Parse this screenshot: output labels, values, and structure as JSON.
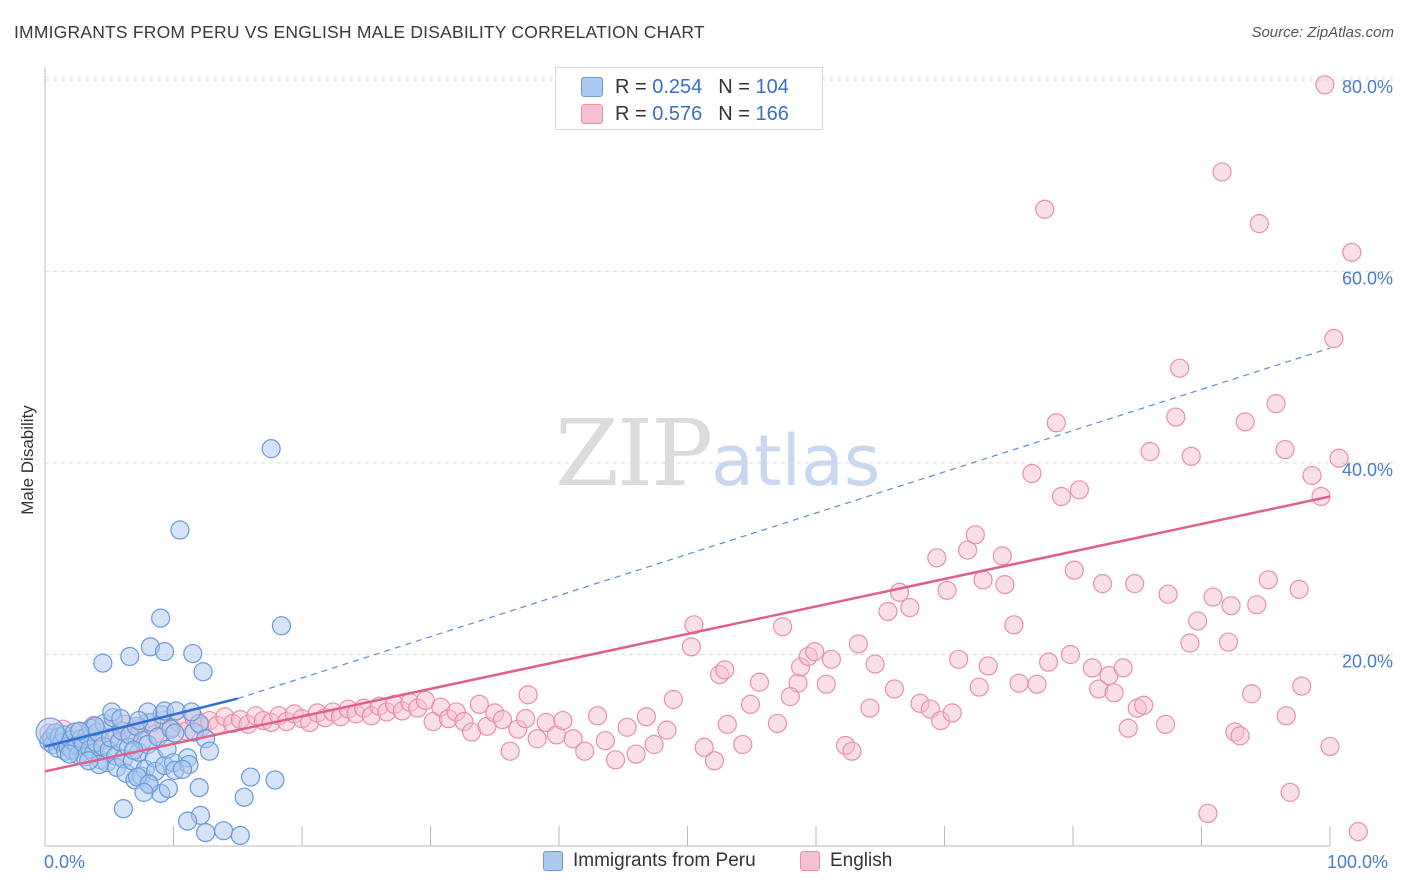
{
  "title": "IMMIGRANTS FROM PERU VS ENGLISH MALE DISABILITY CORRELATION CHART",
  "source": "Source: ZipAtlas.com",
  "watermark": {
    "zip": "ZIP",
    "atlas": "atlas"
  },
  "colors": {
    "blue_fill": "#aac8f0",
    "blue_stroke": "#6a9ad8",
    "blue_line": "#2f6fd1",
    "pink_fill": "#f6c0d0",
    "pink_stroke": "#e890ab",
    "pink_line": "#e0608a",
    "grid": "#dddddd",
    "axis_text": "#4a7bd0"
  },
  "legend_top": [
    {
      "r_label": "R =",
      "r_value": "0.254",
      "n_label": "N =",
      "n_value": "104"
    },
    {
      "r_label": "R =",
      "r_value": "0.576",
      "n_label": "N =",
      "n_value": "166"
    }
  ],
  "legend_bottom": [
    "Immigrants from Peru",
    "English"
  ],
  "chart_data": {
    "type": "scatter",
    "title": "IMMIGRANTS FROM PERU VS ENGLISH MALE DISABILITY CORRELATION CHART",
    "xlabel": "",
    "ylabel": "Male Disability",
    "xlim": [
      0,
      100
    ],
    "ylim": [
      0,
      80
    ],
    "x_tick_labels": {
      "left": "0.0%",
      "right": "100.0%"
    },
    "y_ticks": [
      {
        "value": 20,
        "label": "20.0%"
      },
      {
        "value": 40,
        "label": "40.0%"
      },
      {
        "value": 60,
        "label": "60.0%"
      },
      {
        "value": 80,
        "label": "80.0%"
      }
    ],
    "series": [
      {
        "name": "Immigrants from Peru",
        "color": "blue",
        "R": 0.254,
        "N": 104,
        "trend_solid": [
          [
            0,
            10.4
          ],
          [
            15,
            15.4
          ]
        ],
        "trend_dashed": [
          [
            15,
            15.4
          ],
          [
            100,
            52.0
          ]
        ],
        "points": [
          [
            0.3,
            10.9
          ],
          [
            0.5,
            11.3
          ],
          [
            0.6,
            10.6
          ],
          [
            0.8,
            11.8
          ],
          [
            1.0,
            10.2
          ],
          [
            1.1,
            11.4
          ],
          [
            1.3,
            10.8
          ],
          [
            1.5,
            11.6
          ],
          [
            1.6,
            9.9
          ],
          [
            1.8,
            10.4
          ],
          [
            2.0,
            11.1
          ],
          [
            2.1,
            10.0
          ],
          [
            2.3,
            11.9
          ],
          [
            2.5,
            10.5
          ],
          [
            2.6,
            9.5
          ],
          [
            2.8,
            11.2
          ],
          [
            3.0,
            10.7
          ],
          [
            3.1,
            9.3
          ],
          [
            3.3,
            11.5
          ],
          [
            3.5,
            10.1
          ],
          [
            3.6,
            12.3
          ],
          [
            3.8,
            9.7
          ],
          [
            4.0,
            10.8
          ],
          [
            4.1,
            11.9
          ],
          [
            4.3,
            9.0
          ],
          [
            4.5,
            10.4
          ],
          [
            4.6,
            12.8
          ],
          [
            4.8,
            8.7
          ],
          [
            5.0,
            10.0
          ],
          [
            5.1,
            11.3
          ],
          [
            5.3,
            13.4
          ],
          [
            5.5,
            9.4
          ],
          [
            5.6,
            8.2
          ],
          [
            5.8,
            10.9
          ],
          [
            6.0,
            12.0
          ],
          [
            6.1,
            9.1
          ],
          [
            6.3,
            7.6
          ],
          [
            6.5,
            10.3
          ],
          [
            6.6,
            11.6
          ],
          [
            6.8,
            8.9
          ],
          [
            7.0,
            6.9
          ],
          [
            7.1,
            12.5
          ],
          [
            7.3,
            9.8
          ],
          [
            7.5,
            7.3
          ],
          [
            7.6,
            11.0
          ],
          [
            7.8,
            8.0
          ],
          [
            8.0,
            10.6
          ],
          [
            8.1,
            6.4
          ],
          [
            8.3,
            12.9
          ],
          [
            8.5,
            9.2
          ],
          [
            8.6,
            7.8
          ],
          [
            8.8,
            11.4
          ],
          [
            9.0,
            5.5
          ],
          [
            9.1,
            13.7
          ],
          [
            9.3,
            8.4
          ],
          [
            9.5,
            10.1
          ],
          [
            9.6,
            6.0
          ],
          [
            9.8,
            12.2
          ],
          [
            10.0,
            8.7
          ],
          [
            10.1,
            11.8
          ],
          [
            6.1,
            3.9
          ],
          [
            7.2,
            7.2
          ],
          [
            9.3,
            14.1
          ],
          [
            10.2,
            14.1
          ],
          [
            10.1,
            7.9
          ],
          [
            11.1,
            9.2
          ],
          [
            11.2,
            8.5
          ],
          [
            11.6,
            11.9
          ],
          [
            12.0,
            12.8
          ],
          [
            12.0,
            6.1
          ],
          [
            12.1,
            3.2
          ],
          [
            12.3,
            18.2
          ],
          [
            12.5,
            11.2
          ],
          [
            11.4,
            14.0
          ],
          [
            8.0,
            14.0
          ],
          [
            8.2,
            20.8
          ],
          [
            9.3,
            20.3
          ],
          [
            4.5,
            19.1
          ],
          [
            6.6,
            19.8
          ],
          [
            11.5,
            20.1
          ],
          [
            8.1,
            6.5
          ],
          [
            7.3,
            13.1
          ],
          [
            5.2,
            14.0
          ],
          [
            3.9,
            12.5
          ],
          [
            10.5,
            33.0
          ],
          [
            11.1,
            2.6
          ],
          [
            12.5,
            1.4
          ],
          [
            13.9,
            1.6
          ],
          [
            15.5,
            5.1
          ],
          [
            16.0,
            7.2
          ],
          [
            17.6,
            41.5
          ],
          [
            17.9,
            6.9
          ],
          [
            18.4,
            23.0
          ],
          [
            9.0,
            23.8
          ],
          [
            15.2,
            1.1
          ],
          [
            1.9,
            9.6
          ],
          [
            2.7,
            12.0
          ],
          [
            4.2,
            8.5
          ],
          [
            5.9,
            13.3
          ],
          [
            6.9,
            10.0
          ],
          [
            7.7,
            5.6
          ],
          [
            12.8,
            9.9
          ],
          [
            10.7,
            8.0
          ],
          [
            3.4,
            8.9
          ]
        ]
      },
      {
        "name": "English",
        "color": "pink",
        "R": 0.576,
        "N": 166,
        "trend": [
          [
            0,
            7.8
          ],
          [
            100,
            36.5
          ]
        ],
        "points": [
          [
            0.3,
            11.8
          ],
          [
            0.8,
            11.0
          ],
          [
            1.4,
            12.2
          ],
          [
            2.0,
            10.6
          ],
          [
            2.6,
            11.9
          ],
          [
            3.2,
            11.4
          ],
          [
            3.8,
            12.6
          ],
          [
            4.4,
            11.0
          ],
          [
            5.0,
            12.1
          ],
          [
            5.6,
            11.5
          ],
          [
            6.2,
            12.7
          ],
          [
            6.8,
            11.8
          ],
          [
            7.4,
            12.3
          ],
          [
            8.0,
            12.9
          ],
          [
            8.6,
            11.7
          ],
          [
            9.2,
            13.1
          ],
          [
            9.8,
            12.4
          ],
          [
            10.4,
            12.9
          ],
          [
            11.0,
            12.0
          ],
          [
            11.6,
            13.4
          ],
          [
            12.2,
            12.5
          ],
          [
            12.8,
            13.1
          ],
          [
            13.4,
            12.6
          ],
          [
            14.0,
            13.5
          ],
          [
            14.6,
            12.8
          ],
          [
            15.2,
            13.2
          ],
          [
            15.8,
            12.7
          ],
          [
            16.4,
            13.6
          ],
          [
            17.0,
            13.1
          ],
          [
            17.6,
            12.9
          ],
          [
            18.2,
            13.6
          ],
          [
            18.8,
            13.0
          ],
          [
            19.4,
            13.8
          ],
          [
            20.0,
            13.3
          ],
          [
            20.6,
            12.9
          ],
          [
            21.2,
            13.9
          ],
          [
            21.8,
            13.4
          ],
          [
            22.4,
            14.0
          ],
          [
            23.0,
            13.5
          ],
          [
            23.6,
            14.3
          ],
          [
            24.2,
            13.8
          ],
          [
            24.8,
            14.4
          ],
          [
            25.4,
            13.6
          ],
          [
            26.0,
            14.6
          ],
          [
            26.6,
            14.0
          ],
          [
            27.2,
            14.8
          ],
          [
            27.8,
            14.1
          ],
          [
            28.4,
            15.0
          ],
          [
            29.0,
            14.4
          ],
          [
            29.6,
            15.2
          ],
          [
            30.2,
            13.0
          ],
          [
            30.8,
            14.5
          ],
          [
            31.4,
            13.3
          ],
          [
            32.0,
            14.0
          ],
          [
            32.6,
            13.0
          ],
          [
            33.2,
            11.9
          ],
          [
            33.8,
            14.8
          ],
          [
            34.4,
            12.5
          ],
          [
            35.0,
            13.9
          ],
          [
            35.6,
            13.2
          ],
          [
            36.2,
            9.9
          ],
          [
            36.8,
            12.2
          ],
          [
            37.4,
            13.3
          ],
          [
            37.6,
            15.8
          ],
          [
            38.3,
            11.2
          ],
          [
            39.0,
            12.9
          ],
          [
            39.8,
            11.6
          ],
          [
            40.3,
            13.1
          ],
          [
            41.1,
            11.2
          ],
          [
            42.0,
            9.9
          ],
          [
            43.0,
            13.6
          ],
          [
            43.6,
            11.0
          ],
          [
            44.4,
            9.0
          ],
          [
            45.3,
            12.4
          ],
          [
            46.0,
            9.6
          ],
          [
            46.8,
            13.5
          ],
          [
            47.4,
            10.6
          ],
          [
            48.4,
            12.1
          ],
          [
            48.9,
            15.3
          ],
          [
            50.3,
            20.8
          ],
          [
            50.5,
            23.1
          ],
          [
            51.3,
            10.3
          ],
          [
            52.1,
            8.9
          ],
          [
            52.5,
            17.9
          ],
          [
            53.1,
            12.7
          ],
          [
            54.3,
            10.6
          ],
          [
            54.9,
            14.8
          ],
          [
            55.6,
            17.1
          ],
          [
            57.0,
            12.8
          ],
          [
            57.4,
            22.9
          ],
          [
            58.6,
            17.0
          ],
          [
            58.8,
            18.7
          ],
          [
            59.4,
            19.8
          ],
          [
            59.9,
            20.3
          ],
          [
            60.8,
            16.9
          ],
          [
            61.2,
            19.5
          ],
          [
            62.3,
            10.5
          ],
          [
            62.8,
            9.9
          ],
          [
            63.3,
            21.1
          ],
          [
            64.2,
            14.4
          ],
          [
            64.6,
            19.0
          ],
          [
            65.6,
            24.5
          ],
          [
            66.1,
            16.4
          ],
          [
            66.5,
            26.5
          ],
          [
            67.3,
            24.9
          ],
          [
            68.1,
            14.9
          ],
          [
            68.9,
            14.3
          ],
          [
            69.4,
            30.1
          ],
          [
            69.7,
            13.1
          ],
          [
            70.2,
            26.7
          ],
          [
            70.6,
            13.9
          ],
          [
            71.1,
            19.5
          ],
          [
            71.8,
            30.9
          ],
          [
            72.4,
            32.5
          ],
          [
            72.7,
            16.6
          ],
          [
            73.0,
            27.8
          ],
          [
            73.4,
            18.8
          ],
          [
            74.5,
            30.3
          ],
          [
            74.7,
            27.3
          ],
          [
            75.4,
            23.1
          ],
          [
            75.8,
            17.0
          ],
          [
            76.8,
            38.9
          ],
          [
            77.2,
            16.9
          ],
          [
            77.8,
            66.5
          ],
          [
            78.1,
            19.2
          ],
          [
            78.7,
            44.2
          ],
          [
            79.1,
            36.5
          ],
          [
            79.8,
            20.0
          ],
          [
            80.1,
            28.8
          ],
          [
            80.5,
            37.2
          ],
          [
            81.5,
            18.6
          ],
          [
            82.0,
            16.4
          ],
          [
            82.3,
            27.4
          ],
          [
            82.8,
            17.8
          ],
          [
            83.2,
            16.0
          ],
          [
            83.9,
            18.6
          ],
          [
            84.3,
            12.3
          ],
          [
            84.8,
            27.4
          ],
          [
            85.0,
            14.4
          ],
          [
            85.5,
            14.7
          ],
          [
            86.0,
            41.2
          ],
          [
            87.2,
            12.7
          ],
          [
            87.4,
            26.3
          ],
          [
            88.0,
            44.8
          ],
          [
            88.3,
            49.9
          ],
          [
            89.1,
            21.2
          ],
          [
            89.2,
            40.7
          ],
          [
            89.7,
            23.5
          ],
          [
            90.5,
            3.4
          ],
          [
            90.9,
            26.0
          ],
          [
            91.6,
            70.4
          ],
          [
            92.1,
            21.3
          ],
          [
            92.3,
            25.1
          ],
          [
            92.6,
            11.9
          ],
          [
            93.0,
            11.5
          ],
          [
            93.4,
            44.3
          ],
          [
            93.9,
            15.9
          ],
          [
            94.3,
            25.2
          ],
          [
            94.5,
            65.0
          ],
          [
            95.2,
            27.8
          ],
          [
            95.8,
            46.2
          ],
          [
            96.5,
            41.4
          ],
          [
            96.9,
            5.6
          ],
          [
            97.6,
            26.8
          ],
          [
            97.8,
            16.7
          ],
          [
            98.6,
            38.7
          ],
          [
            99.3,
            36.5
          ],
          [
            99.6,
            79.5
          ],
          [
            100.0,
            10.4
          ],
          [
            100.3,
            53.0
          ],
          [
            100.7,
            40.5
          ],
          [
            101.7,
            62.0
          ],
          [
            102.2,
            1.5
          ],
          [
            96.6,
            13.6
          ],
          [
            58.0,
            15.6
          ],
          [
            52.9,
            18.4
          ]
        ]
      }
    ]
  }
}
